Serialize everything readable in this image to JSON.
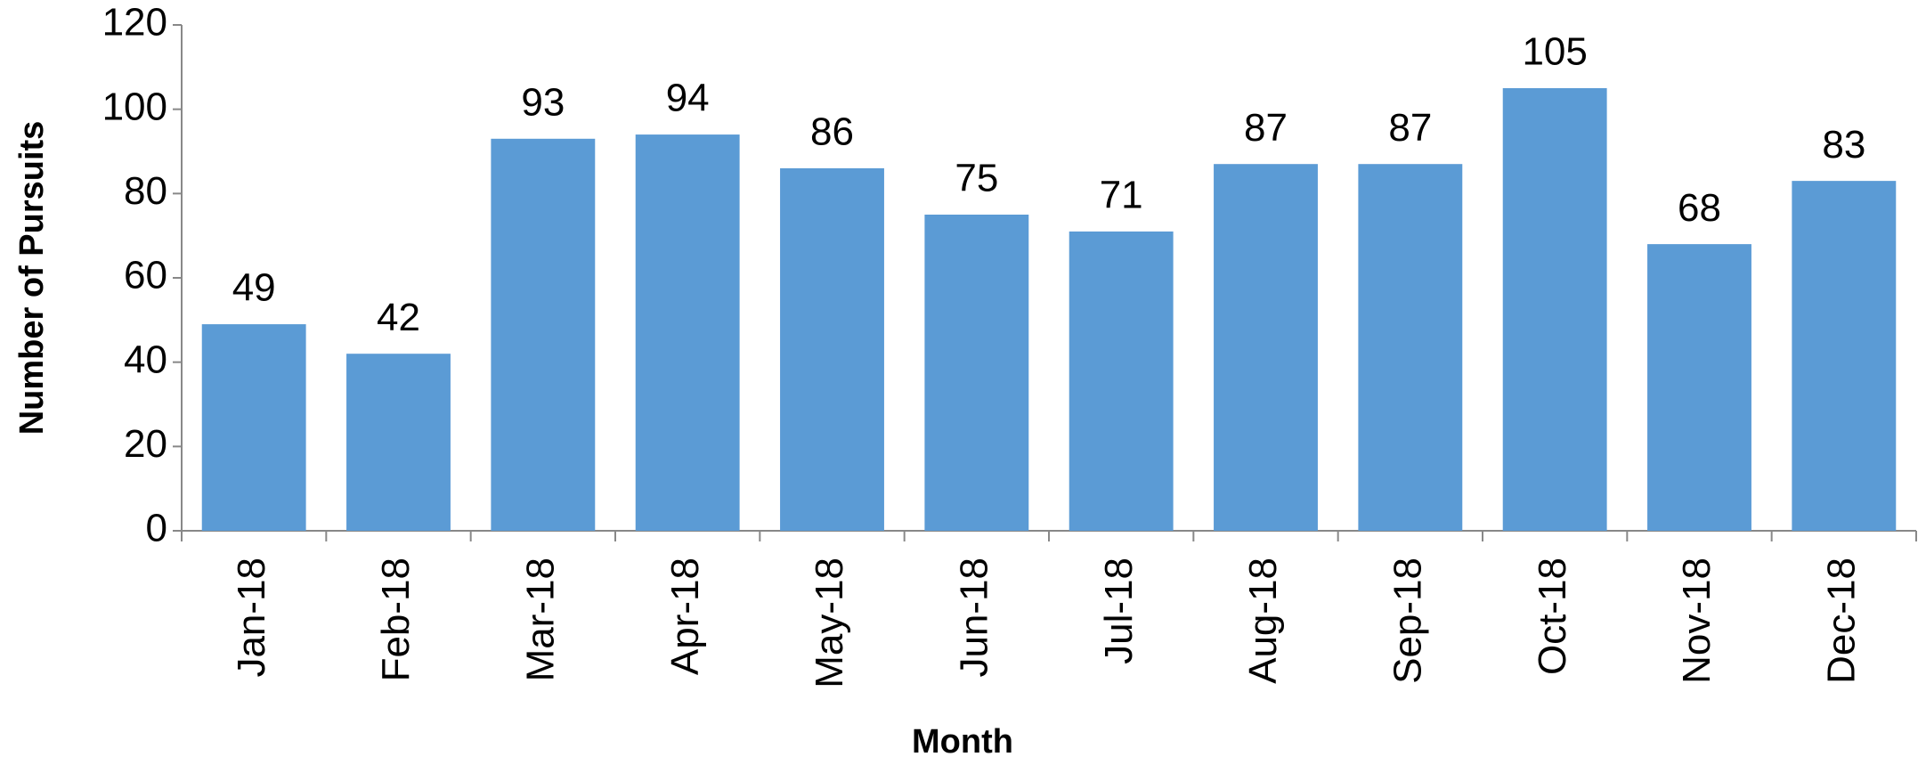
{
  "chart_data": {
    "type": "bar",
    "x_label": "Month",
    "y_label": "Number of Pursuits",
    "categories": [
      "Jan-18",
      "Feb-18",
      "Mar-18",
      "Apr-18",
      "May-18",
      "Jun-18",
      "Jul-18",
      "Aug-18",
      "Sep-18",
      "Oct-18",
      "Nov-18",
      "Dec-18"
    ],
    "values": [
      49,
      42,
      93,
      94,
      86,
      75,
      71,
      87,
      87,
      105,
      68,
      83
    ],
    "color": "#5b9bd5",
    "ylim": [
      0,
      120
    ],
    "yticks": [
      0,
      20,
      40,
      60,
      80,
      100,
      120
    ],
    "grid": false
  }
}
